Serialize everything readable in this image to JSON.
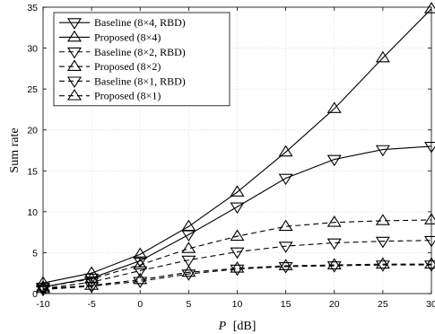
{
  "chart_data": {
    "type": "line",
    "xlabel_italic": "P",
    "xlabel_unit": "[dB]",
    "ylabel": "Sum rate",
    "xlim": [
      -10,
      30
    ],
    "ylim": [
      0,
      35
    ],
    "x_ticks": [
      -10,
      -5,
      0,
      5,
      10,
      15,
      20,
      25,
      30
    ],
    "y_ticks": [
      0,
      5,
      10,
      15,
      20,
      25,
      30,
      35
    ],
    "grid": true,
    "legend_position": "top-left",
    "x": [
      -10,
      -5,
      0,
      5,
      10,
      15,
      20,
      25,
      30
    ],
    "series": [
      {
        "name": "Baseline (8×4, RBD)",
        "marker": "triangle-down",
        "line": "solid",
        "values": [
          0.8,
          1.9,
          4.0,
          7.2,
          10.6,
          14.1,
          16.4,
          17.6,
          18.0
        ]
      },
      {
        "name": "Proposed (8×4)",
        "marker": "triangle-up",
        "line": "solid",
        "values": [
          1.3,
          2.5,
          4.8,
          8.2,
          12.4,
          17.3,
          22.6,
          28.8,
          34.8
        ]
      },
      {
        "name": "Baseline (8×2, RBD)",
        "marker": "triangle-down",
        "line": "dashed",
        "values": [
          0.6,
          1.4,
          2.8,
          4.1,
          5.1,
          5.8,
          6.2,
          6.4,
          6.5
        ]
      },
      {
        "name": "Proposed (8×2)",
        "marker": "triangle-up",
        "line": "dashed",
        "values": [
          0.8,
          1.8,
          3.5,
          5.5,
          7.0,
          8.2,
          8.7,
          8.9,
          9.0
        ]
      },
      {
        "name": "Baseline (8×1, RBD)",
        "marker": "triangle-down",
        "line": "dashed",
        "values": [
          0.5,
          0.9,
          1.5,
          2.4,
          3.0,
          3.3,
          3.4,
          3.5,
          3.5
        ]
      },
      {
        "name": "Proposed (8×1)",
        "marker": "triangle-up",
        "line": "dashed",
        "values": [
          0.6,
          1.0,
          1.7,
          2.6,
          3.1,
          3.4,
          3.5,
          3.6,
          3.6
        ]
      }
    ]
  }
}
